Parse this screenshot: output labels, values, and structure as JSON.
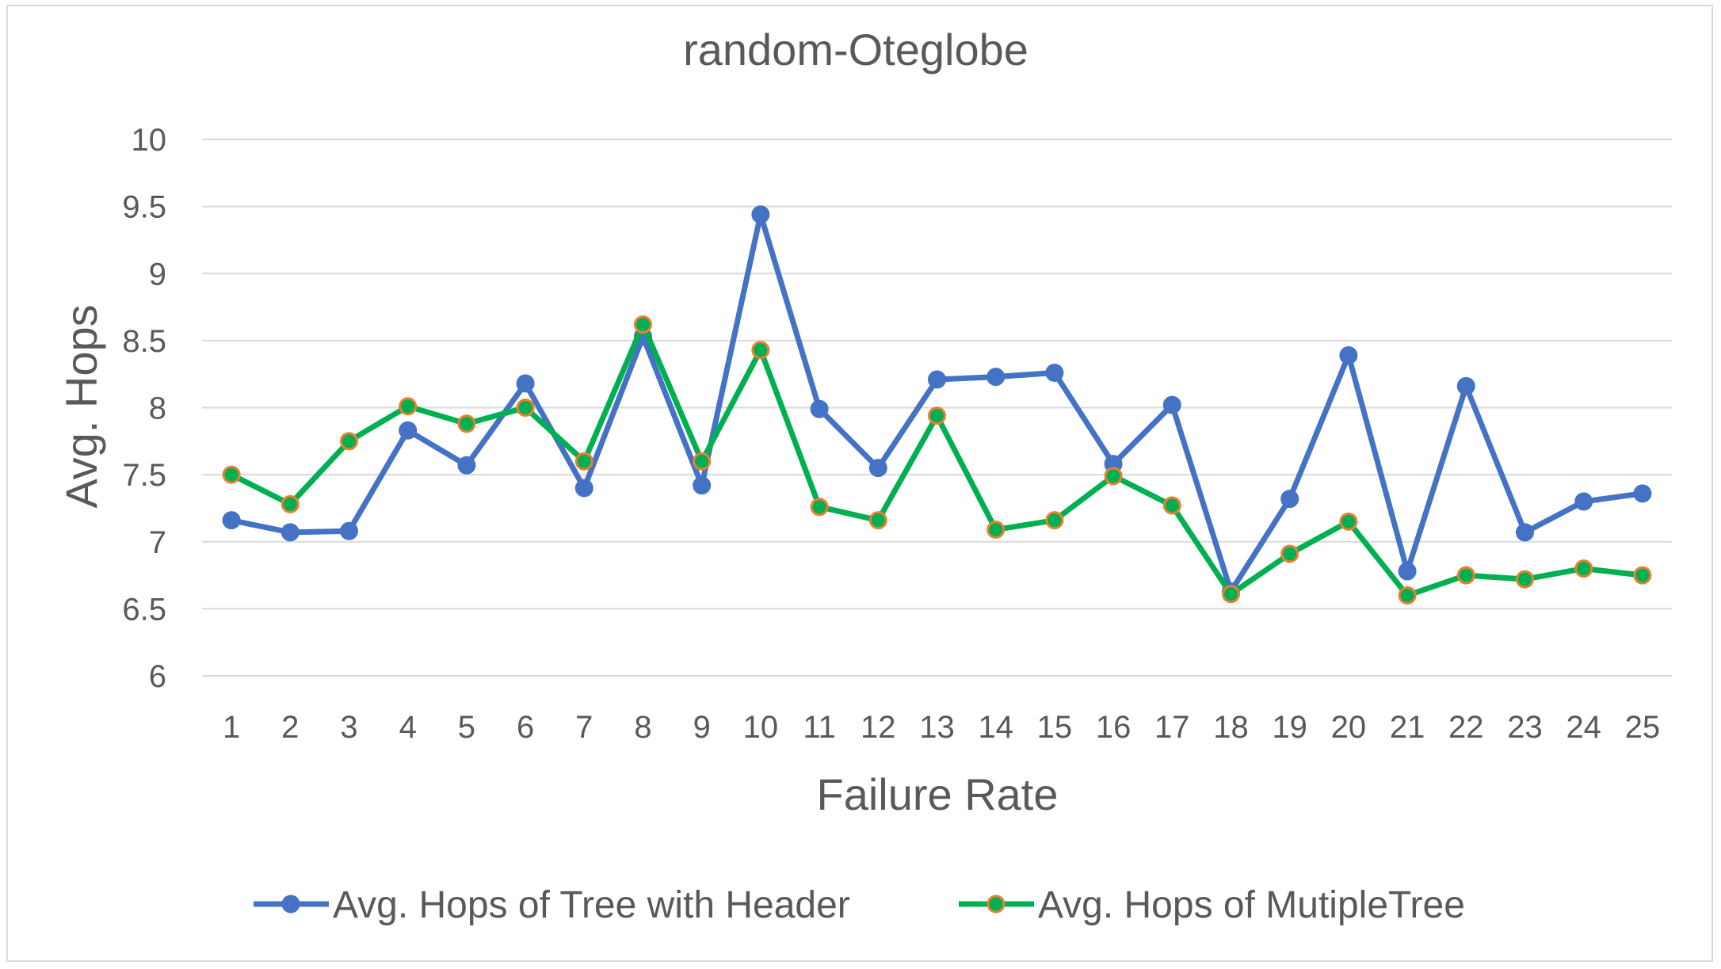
{
  "chart_data": {
    "type": "line",
    "title": "random-Oteglobe",
    "xlabel": "Failure Rate",
    "ylabel": "Avg. Hops",
    "ylim": [
      6,
      10
    ],
    "yticks": [
      "6",
      "6.5",
      "7",
      "7.5",
      "8",
      "8.5",
      "9",
      "9.5",
      "10"
    ],
    "categories": [
      "1",
      "2",
      "3",
      "4",
      "5",
      "6",
      "7",
      "8",
      "9",
      "10",
      "11",
      "12",
      "13",
      "14",
      "15",
      "16",
      "17",
      "18",
      "19",
      "20",
      "21",
      "22",
      "23",
      "24",
      "25"
    ],
    "grid": "horizontal",
    "legend_position": "bottom",
    "series": [
      {
        "name": "Avg. Hops of Tree with Header",
        "color": "#4472c4",
        "marker_fill": "#4472c4",
        "marker_edge": "#4472c4",
        "values": [
          7.16,
          7.07,
          7.08,
          7.83,
          7.57,
          8.18,
          7.4,
          8.53,
          7.42,
          9.44,
          7.99,
          7.55,
          8.21,
          8.23,
          8.26,
          7.58,
          8.02,
          6.63,
          7.32,
          8.39,
          6.78,
          8.16,
          7.07,
          7.3,
          7.36
        ]
      },
      {
        "name": "Avg. Hops of MutipleTree",
        "color": "#00b050",
        "marker_fill": "#00b050",
        "marker_edge": "#ed7d31",
        "values": [
          7.5,
          7.28,
          7.75,
          8.01,
          7.88,
          8.0,
          7.6,
          8.62,
          7.6,
          8.43,
          7.26,
          7.16,
          7.94,
          7.09,
          7.16,
          7.49,
          7.27,
          6.61,
          6.91,
          7.15,
          6.6,
          6.75,
          6.72,
          6.8,
          6.75
        ]
      }
    ]
  }
}
